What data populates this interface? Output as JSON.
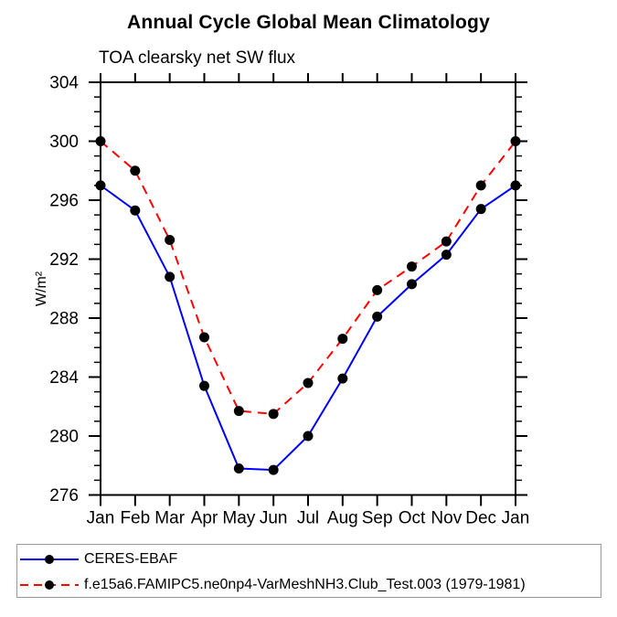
{
  "header": {
    "title": "Annual Cycle Global Mean Climatology",
    "subtitle": "TOA clearsky net SW flux"
  },
  "chart_data": {
    "type": "line",
    "title": "Annual Cycle Global Mean Climatology",
    "subtitle": "TOA clearsky net SW flux",
    "ylabel": "W/m²",
    "xlabel": "",
    "x_categories": [
      "Jan",
      "Feb",
      "Mar",
      "Apr",
      "May",
      "Jun",
      "Jul",
      "Aug",
      "Sep",
      "Oct",
      "Nov",
      "Dec",
      "Jan"
    ],
    "ylim": [
      276,
      304
    ],
    "yticks_major": [
      276,
      280,
      284,
      288,
      292,
      296,
      300,
      304
    ],
    "ytick_major_step": 4,
    "ytick_minor_step": 1,
    "grid": false,
    "legend_position": "bottom-left-box",
    "series": [
      {
        "name": "CERES-EBAF",
        "color": "#0000ff",
        "line_style": "solid",
        "marker": "filled-circle",
        "marker_color": "#000000",
        "values": [
          297.0,
          295.3,
          290.8,
          283.4,
          277.8,
          277.7,
          280.0,
          283.9,
          288.1,
          290.3,
          292.3,
          295.4,
          297.0
        ]
      },
      {
        "name": "f.e15a6.FAMIPC5.ne0np4-VarMeshNH3.Club_Test.003 (1979-1981)",
        "color": "#ff0000",
        "line_style": "dashed",
        "marker": "filled-circle",
        "marker_color": "#000000",
        "values": [
          300.0,
          298.0,
          293.3,
          286.7,
          281.7,
          281.5,
          283.6,
          286.6,
          289.9,
          291.5,
          293.2,
          297.0,
          300.0
        ]
      }
    ]
  }
}
